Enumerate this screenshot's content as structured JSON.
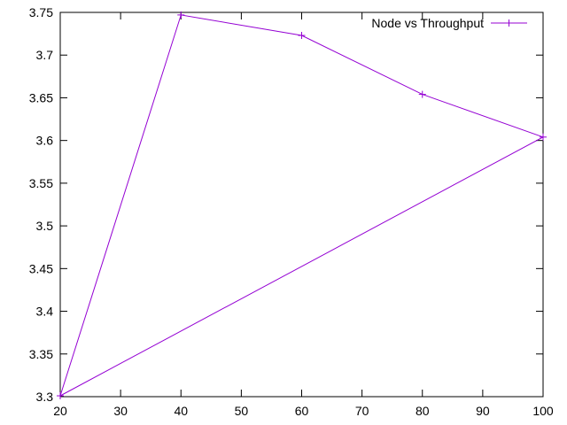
{
  "chart_data": {
    "type": "line",
    "title": "",
    "xlabel": "",
    "ylabel": "",
    "xlim": [
      20,
      100
    ],
    "ylim": [
      3.3,
      3.75
    ],
    "xticks": [
      20,
      30,
      40,
      50,
      60,
      70,
      80,
      90,
      100
    ],
    "yticks": [
      3.3,
      3.35,
      3.4,
      3.45,
      3.5,
      3.55,
      3.6,
      3.65,
      3.7,
      3.75
    ],
    "xtick_labels": [
      "20",
      "30",
      "40",
      "50",
      "60",
      "70",
      "80",
      "90",
      "100"
    ],
    "ytick_labels": [
      "3.3",
      "3.35",
      "3.4",
      "3.45",
      "3.5",
      "3.55",
      "3.6",
      "3.65",
      "3.7",
      "3.75"
    ],
    "grid": false,
    "legend_position": "top-right",
    "series": [
      {
        "name": "Node vs Throughput",
        "color": "#9400d3",
        "marker": "plus",
        "points": [
          {
            "x": 20,
            "y": 3.301
          },
          {
            "x": 40,
            "y": 3.747
          },
          {
            "x": 60,
            "y": 3.723
          },
          {
            "x": 80,
            "y": 3.654
          },
          {
            "x": 100,
            "y": 3.604
          },
          {
            "x": 20,
            "y": 3.301
          }
        ]
      }
    ]
  }
}
